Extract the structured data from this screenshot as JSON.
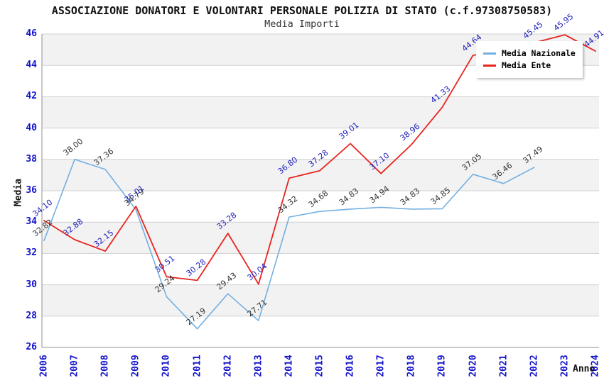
{
  "chart_data": {
    "type": "line",
    "title": "ASSOCIAZIONE DONATORI E VOLONTARI PERSONALE POLIZIA DI STATO (c.f.97308750583)",
    "subtitle": "Media Importi",
    "xlabel": "Anno",
    "ylabel": "Media",
    "x": [
      2006,
      2007,
      2008,
      2009,
      2010,
      2011,
      2012,
      2013,
      2014,
      2015,
      2016,
      2017,
      2018,
      2019,
      2020,
      2021,
      2022,
      2023,
      2024
    ],
    "series": [
      {
        "name": "Media Nazionale",
        "color": "#74b0e2",
        "label_color": "#333333",
        "values": [
          32.82,
          38.0,
          37.36,
          34.79,
          29.24,
          27.19,
          29.43,
          27.71,
          34.32,
          34.68,
          34.83,
          34.94,
          34.83,
          34.85,
          37.05,
          36.46,
          37.49,
          null,
          null
        ]
      },
      {
        "name": "Media Ente",
        "color": "#e8251f",
        "label_color": "#2222bb",
        "values": [
          34.1,
          32.88,
          32.15,
          35.01,
          30.51,
          30.28,
          33.28,
          30.04,
          36.8,
          37.28,
          39.01,
          37.1,
          38.96,
          41.33,
          44.64,
          null,
          45.45,
          45.95,
          44.91
        ]
      }
    ],
    "ylim": [
      26,
      46
    ],
    "ytick_step": 2,
    "grid": true,
    "band_fill_ranges": [
      [
        28,
        30
      ],
      [
        32,
        34
      ],
      [
        36,
        38
      ],
      [
        40,
        42
      ],
      [
        44,
        46
      ]
    ],
    "legend_position": "top-right",
    "data_label_rotation_deg": -38,
    "colors": {
      "tick_label": "#1313cd",
      "gridline": "#d0d0d0",
      "band": "#f2f2f2",
      "axis": "#909090"
    }
  }
}
